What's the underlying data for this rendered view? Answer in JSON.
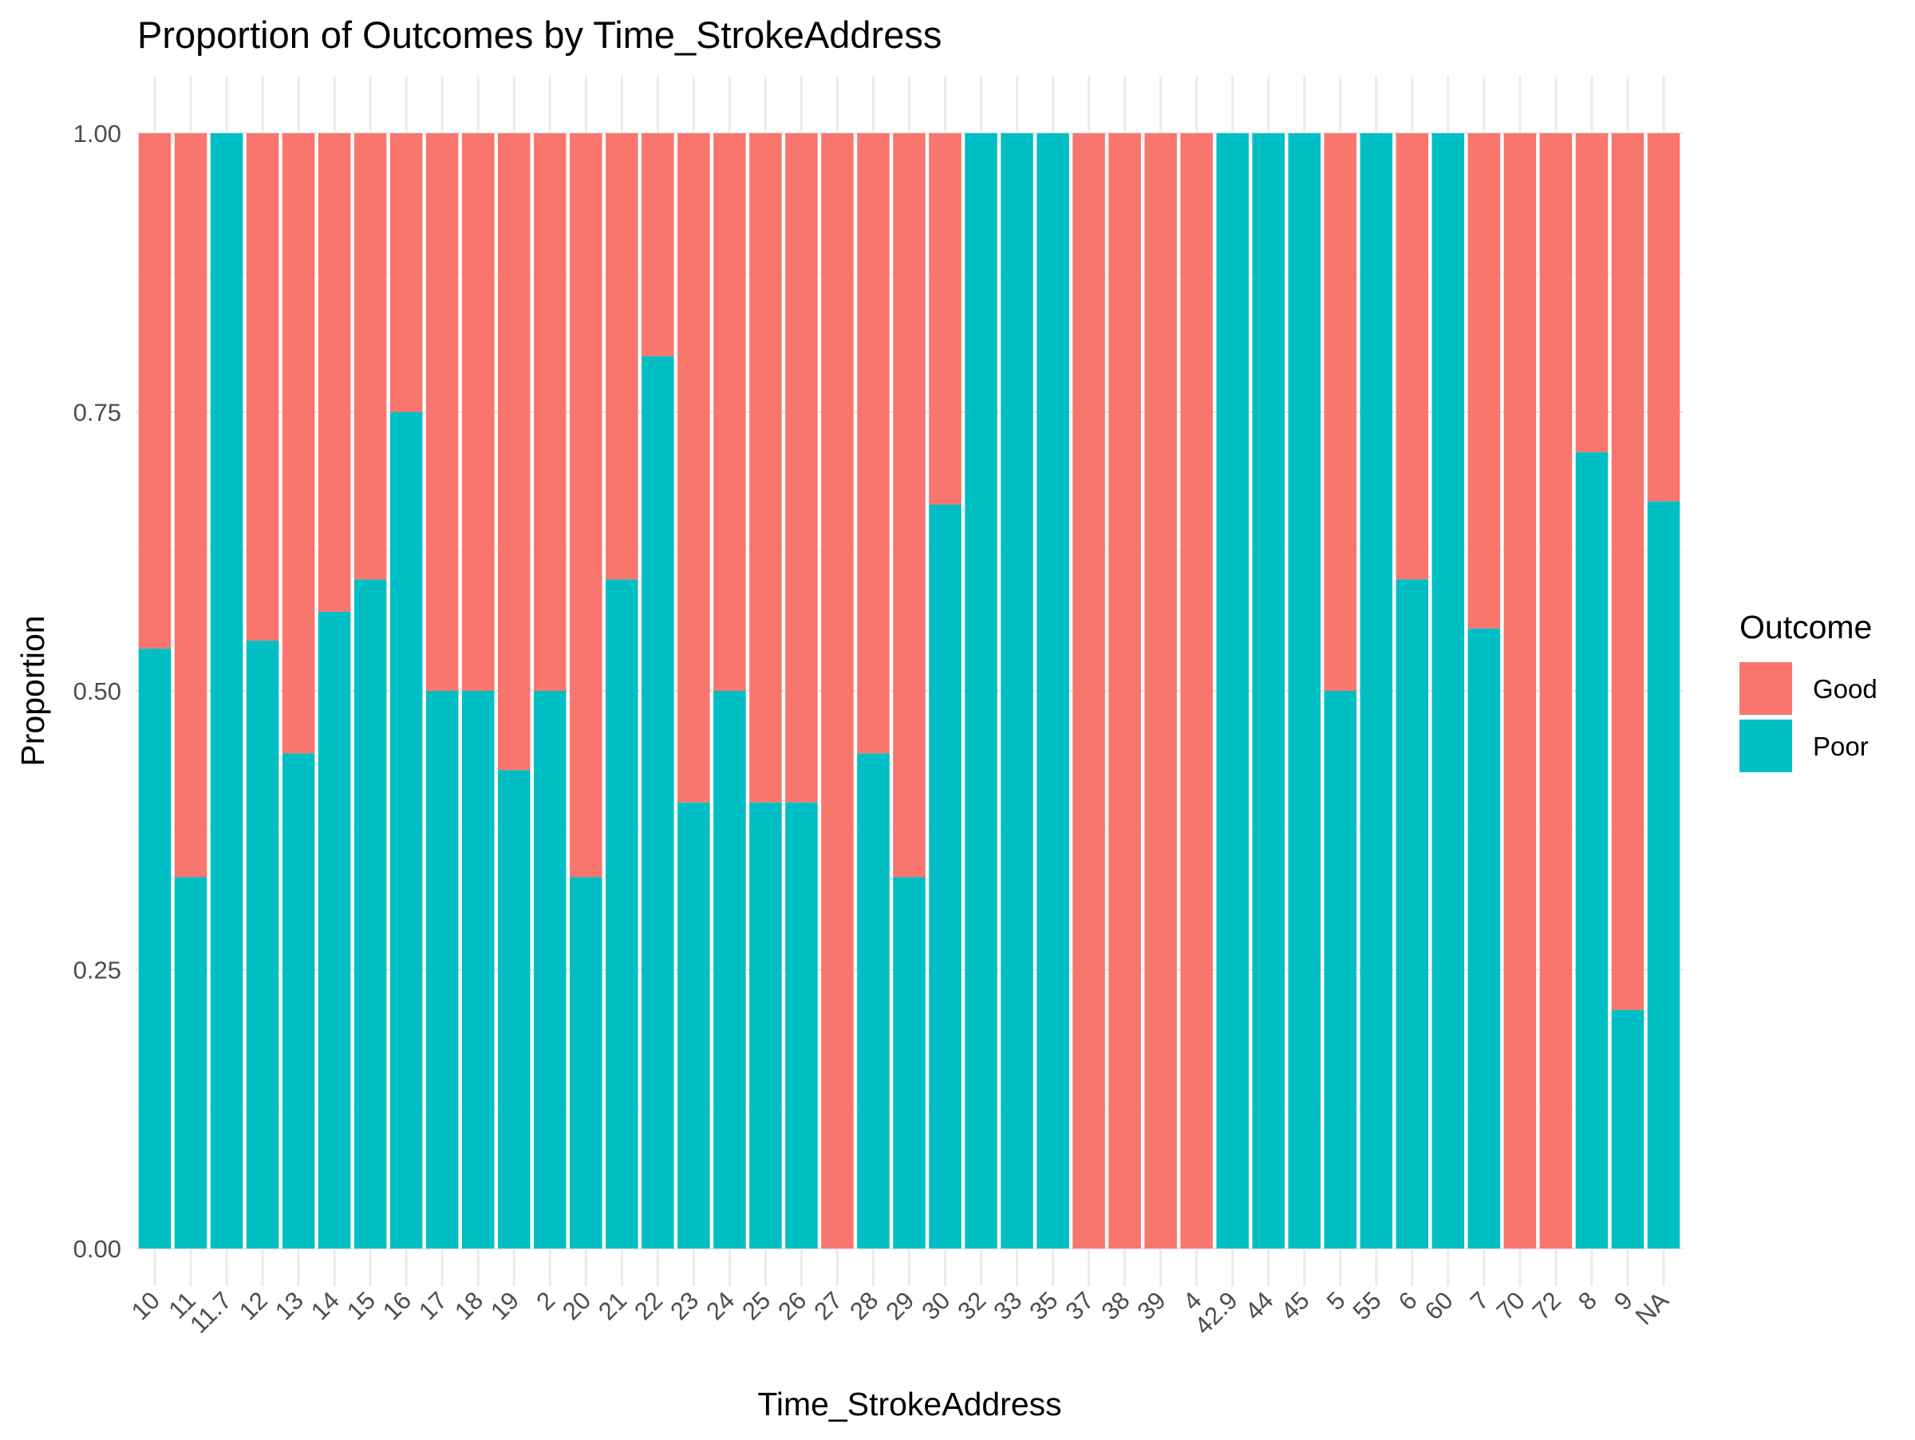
{
  "chart_data": {
    "type": "bar",
    "stacked": true,
    "title": "Proportion of Outcomes by Time_StrokeAddress",
    "xlabel": "Time_StrokeAddress",
    "ylabel": "Proportion",
    "ylim": [
      0,
      1
    ],
    "yticks": [
      "0.00",
      "0.25",
      "0.50",
      "0.75",
      "1.00"
    ],
    "grid": true,
    "legend": {
      "title": "Outcome",
      "placement": "right"
    },
    "categories": [
      "10",
      "11",
      "11.7",
      "12",
      "13",
      "14",
      "15",
      "16",
      "17",
      "18",
      "19",
      "2",
      "20",
      "21",
      "22",
      "23",
      "24",
      "25",
      "26",
      "27",
      "28",
      "29",
      "30",
      "32",
      "33",
      "35",
      "37",
      "38",
      "39",
      "4",
      "42.9",
      "44",
      "45",
      "5",
      "55",
      "6",
      "60",
      "7",
      "70",
      "72",
      "8",
      "9",
      "NA"
    ],
    "series": [
      {
        "name": "Good",
        "color": "#F8766D",
        "values": [
          0.462,
          0.667,
          0,
          0.455,
          0.556,
          0.429,
          0.4,
          0.25,
          0.5,
          0.5,
          0.571,
          0.5,
          0.667,
          0.4,
          0.2,
          0.6,
          0.5,
          0.6,
          0.6,
          1,
          0.556,
          0.667,
          0.333,
          0,
          0,
          0,
          1,
          1,
          1,
          1,
          0,
          0,
          0,
          0.5,
          0,
          0.4,
          0,
          0.444,
          1,
          1,
          0.286,
          0.786,
          0.33
        ]
      },
      {
        "name": "Poor",
        "color": "#00BFC4",
        "values": [
          0.538,
          0.333,
          1,
          0.545,
          0.444,
          0.571,
          0.6,
          0.75,
          0.5,
          0.5,
          0.429,
          0.5,
          0.333,
          0.6,
          0.8,
          0.4,
          0.5,
          0.4,
          0.4,
          0,
          0.444,
          0.333,
          0.667,
          1,
          1,
          1,
          0,
          0,
          0,
          0,
          1,
          1,
          1,
          0.5,
          1,
          0.6,
          1,
          0.556,
          0,
          0,
          0.714,
          0.214,
          0.67
        ]
      }
    ]
  }
}
